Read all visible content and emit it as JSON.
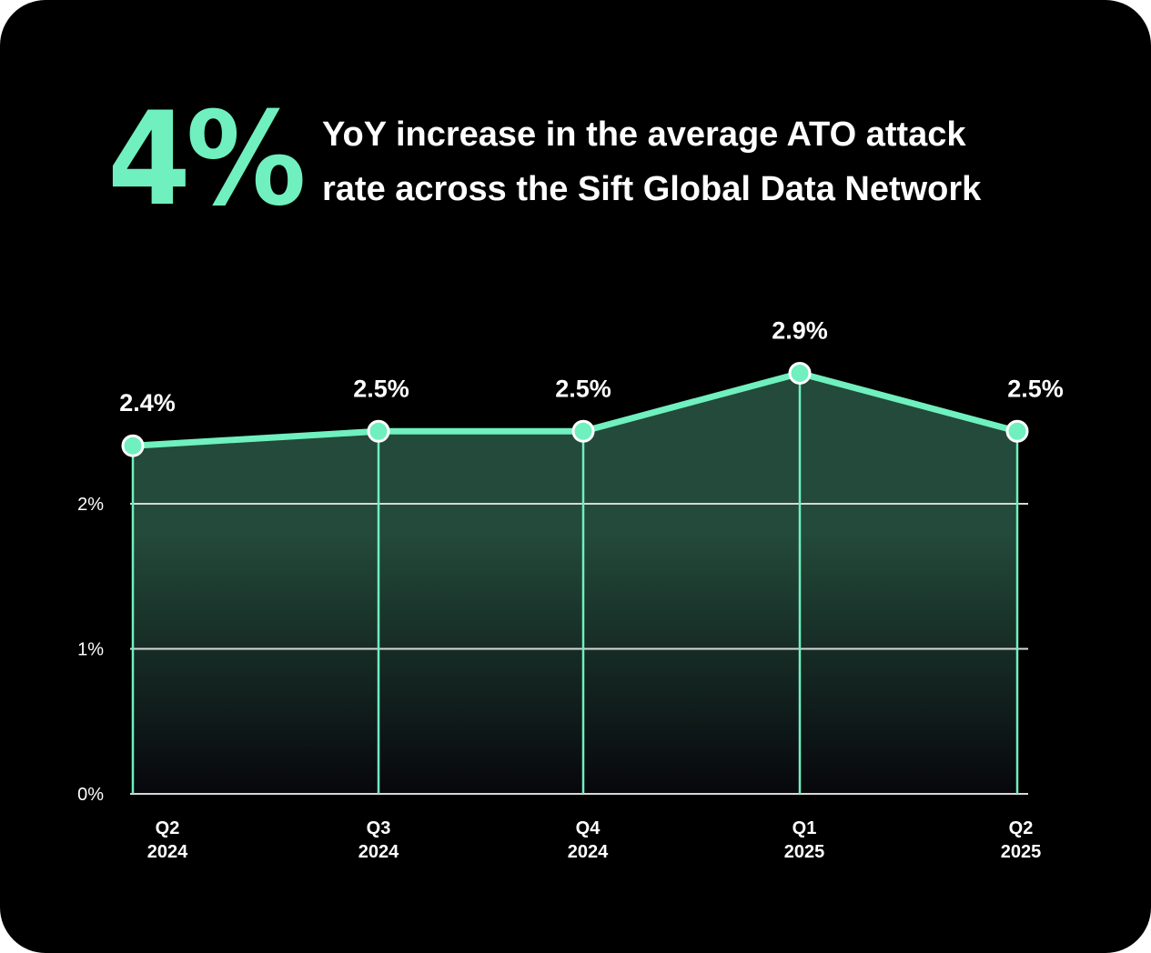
{
  "header": {
    "stat": "4%",
    "line1": "YoY increase in the average ATO attack",
    "line2": "rate across the Sift Global Data Network"
  },
  "colors": {
    "background": "#000000",
    "accent": "#6ff0be",
    "area_top": "#234a3a",
    "area_bottom": "#07070c",
    "gridline": "#d8d8d8",
    "text": "#ffffff"
  },
  "chart_data": {
    "type": "area",
    "categories": [
      [
        "Q2",
        "2024"
      ],
      [
        "Q3",
        "2024"
      ],
      [
        "Q4",
        "2024"
      ],
      [
        "Q1",
        "2025"
      ],
      [
        "Q2",
        "2025"
      ]
    ],
    "values": [
      2.4,
      2.5,
      2.5,
      2.9,
      2.5
    ],
    "value_labels": [
      "2.4%",
      "2.5%",
      "2.5%",
      "2.9%",
      "2.5%"
    ],
    "yticks": [
      0,
      1,
      2
    ],
    "ytick_labels": [
      "0%",
      "1%",
      "2%"
    ],
    "ylim": [
      0,
      3.1
    ],
    "grid": "horizontal",
    "markers": true,
    "vertical_drop_lines": true
  }
}
